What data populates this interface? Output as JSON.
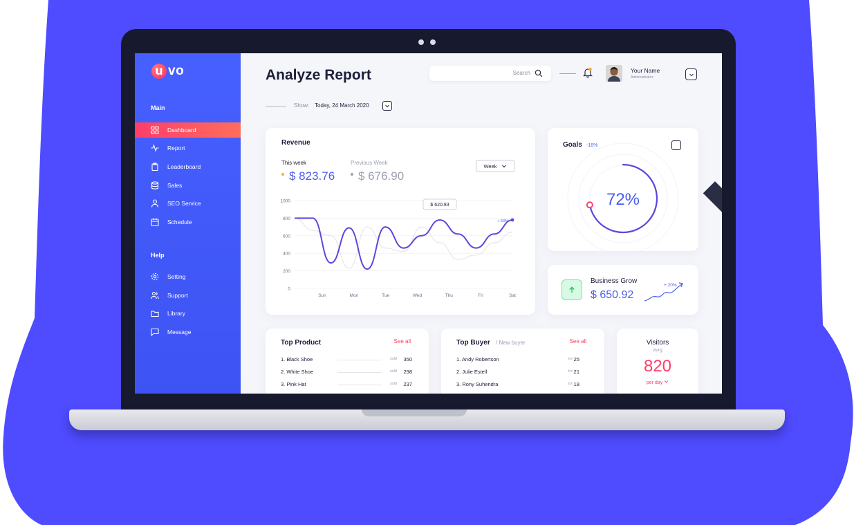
{
  "brand": {
    "logo_letter": "u",
    "logo_rest": "vo"
  },
  "sidebar": {
    "main_label": "Main",
    "help_label": "Help",
    "main_items": [
      {
        "label": "Dashboard",
        "icon": "grid-icon",
        "active": true
      },
      {
        "label": "Report",
        "icon": "activity-icon"
      },
      {
        "label": "Leaderboard",
        "icon": "clipboard-icon"
      },
      {
        "label": "Sales",
        "icon": "database-icon"
      },
      {
        "label": "SEO Service",
        "icon": "user-icon"
      },
      {
        "label": "Schedule",
        "icon": "calendar-icon"
      }
    ],
    "help_items": [
      {
        "label": "Setting",
        "icon": "gear-icon"
      },
      {
        "label": "Support",
        "icon": "users-icon"
      },
      {
        "label": "Library",
        "icon": "folder-icon"
      },
      {
        "label": "Message",
        "icon": "message-icon"
      }
    ]
  },
  "header": {
    "title": "Analyze Report",
    "show_label": "Show:",
    "show_value": "Today, 24 March 2020",
    "search_placeholder": "Search",
    "user_name": "Your Name",
    "user_role": "Administrator"
  },
  "revenue": {
    "title": "Revenue",
    "this_week_label": "This week",
    "this_week_value": "$ 823.76",
    "prev_week_label": "Previous Week",
    "prev_week_value": "$ 676.90",
    "period_select": "Week",
    "tooltip": "$ 620.83",
    "end_delta": "+ 53%"
  },
  "chart_data": {
    "type": "line",
    "categories": [
      "Sun",
      "Mon",
      "Tue",
      "Wed",
      "Thu",
      "Fri",
      "Sat"
    ],
    "yticks": [
      0,
      200,
      400,
      600,
      800,
      1000
    ],
    "ylim": [
      0,
      1000
    ],
    "x": [
      0,
      0.5,
      1,
      1.5,
      2,
      2.5,
      3,
      3.5,
      4,
      4.5,
      5,
      5.5,
      6
    ],
    "series": [
      {
        "color": "#5b47e0",
        "values": [
          800,
          800,
          290,
          690,
          220,
          700,
          460,
          600,
          780,
          620,
          460,
          620,
          780
        ]
      },
      {
        "color": "#e1e2ea",
        "values": [
          800,
          660,
          600,
          230,
          700,
          460,
          420,
          700,
          520,
          330,
          380,
          520,
          640
        ]
      }
    ]
  },
  "goals": {
    "title": "Goals",
    "delta": "-16%",
    "percent": 72,
    "percent_label": "72%"
  },
  "business": {
    "title": "Business Grow",
    "value": "$ 650.92",
    "delta": "+ 20%"
  },
  "top_product": {
    "title": "Top Product",
    "see_all": "See all",
    "items": [
      {
        "name": "1. Black Shoe",
        "unit": "sold",
        "value": "350"
      },
      {
        "name": "2. White Shoe",
        "unit": "sold",
        "value": "298"
      },
      {
        "name": "3. Pink Hat",
        "unit": "sold",
        "value": "237"
      }
    ]
  },
  "top_buyer": {
    "title": "Top Buyer",
    "subtitle": "/ New buyer",
    "see_all": "See all",
    "items": [
      {
        "name": "1. Andy Robertson",
        "unit": "trx",
        "value": "25"
      },
      {
        "name": "2. Julie Estell",
        "unit": "trx",
        "value": "21"
      },
      {
        "name": "3. Rony Suhendra",
        "unit": "trx",
        "value": "18"
      }
    ]
  },
  "visitors": {
    "title": "Visitors",
    "sub": "avrg",
    "value": "820",
    "period": "per day"
  },
  "colors": {
    "accent": "#4a5ee8",
    "sidebar": "#4660ff",
    "active": "#ff3d6b",
    "backdrop": "#4f4bff"
  }
}
